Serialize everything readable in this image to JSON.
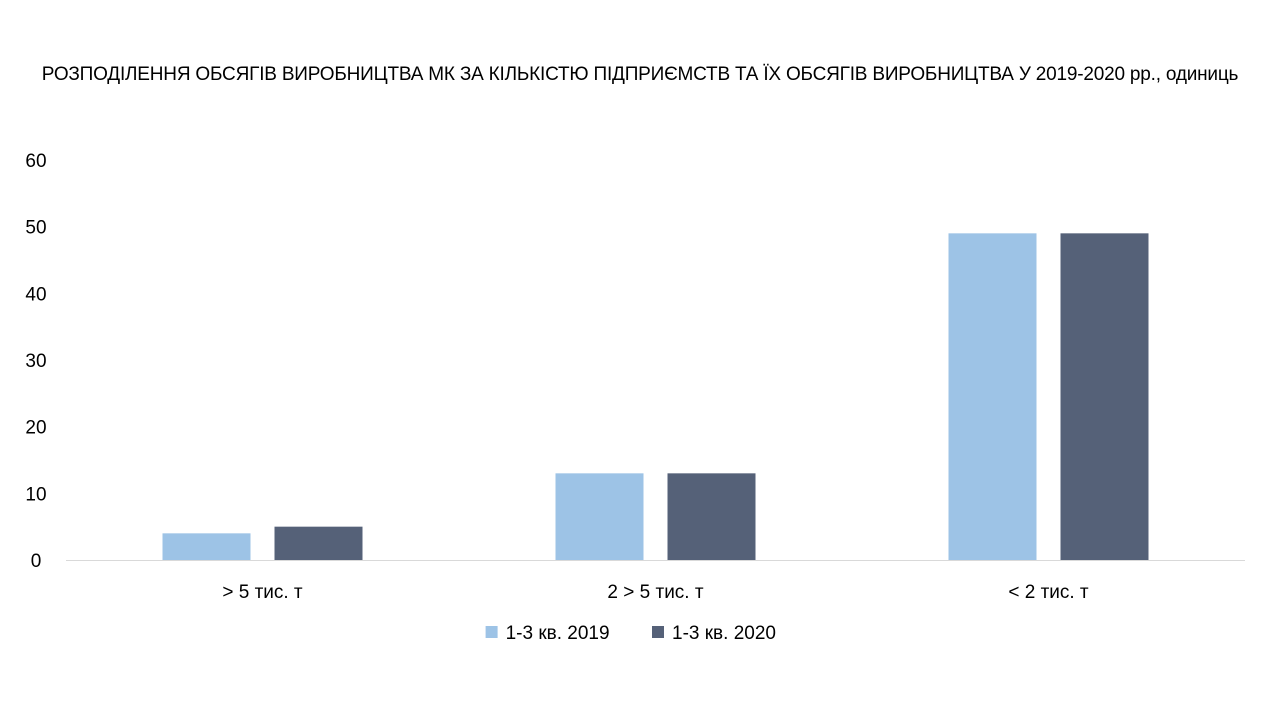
{
  "chart_data": {
    "type": "bar",
    "title": "РОЗПОДІЛЕННЯ ОБСЯГІВ ВИРОБНИЦТВА МК ЗА КІЛЬКІСТЮ ПІДПРИЄМСТВ ТА ЇХ ОБСЯГІВ ВИРОБНИЦТВА У 2019-2020 рр., одиниць",
    "xlabel": "",
    "ylabel": "",
    "categories": [
      "> 5 тис. т",
      "2 > 5 тис. т",
      "< 2 тис. т"
    ],
    "series": [
      {
        "name": "1-3 кв. 2019",
        "color": "#9DC3E6",
        "values": [
          4,
          13,
          49
        ]
      },
      {
        "name": "1-3 кв. 2020",
        "color": "#556178",
        "values": [
          5,
          13,
          49
        ]
      }
    ],
    "ylim": [
      0,
      60
    ],
    "yticks": [
      "0",
      "10",
      "20",
      "30",
      "40",
      "50",
      "60"
    ],
    "grid": false,
    "legend_position": "bottom"
  }
}
